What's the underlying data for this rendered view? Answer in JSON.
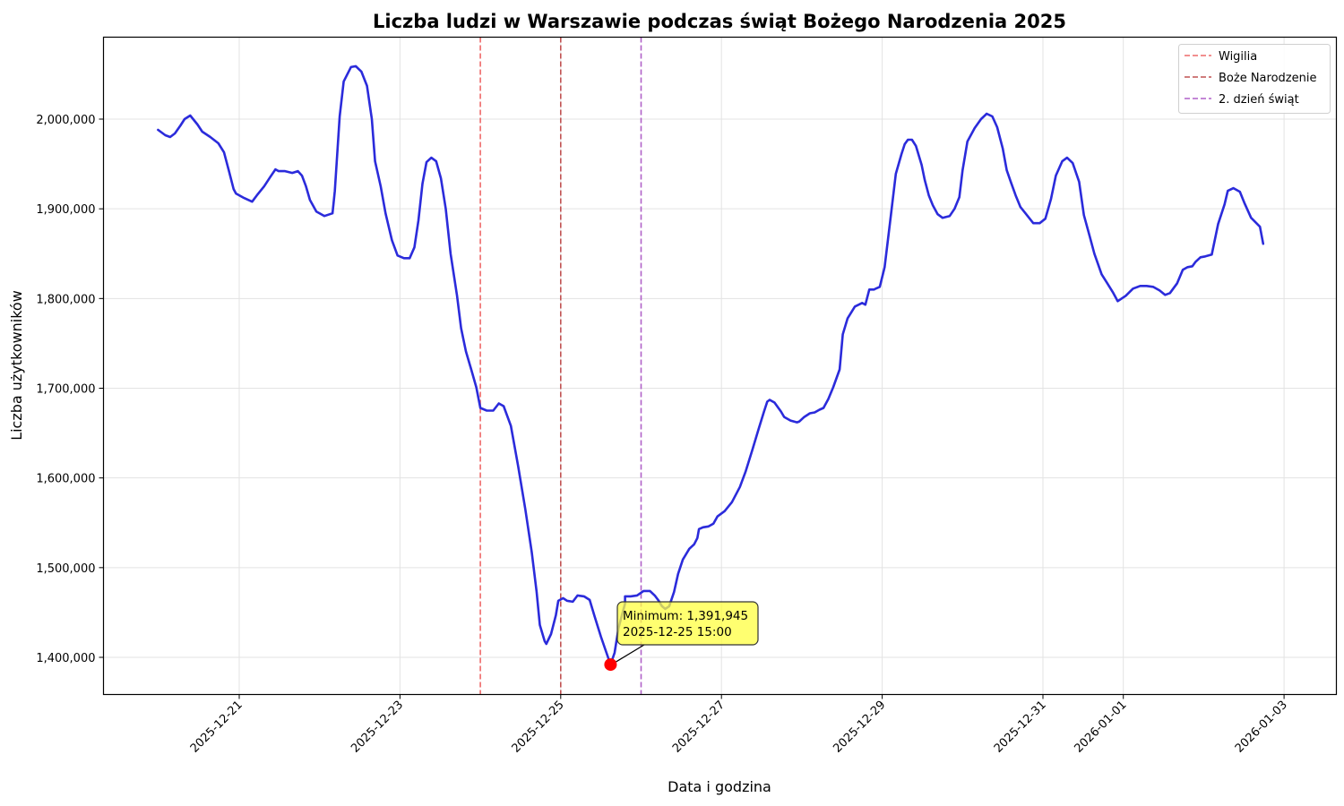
{
  "chart_data": {
    "type": "line",
    "title": "Liczba ludzi w Warszawie podczas świąt Bożego Narodzenia 2025",
    "xlabel": "Data i godzina",
    "ylabel": "Liczba użytkowników",
    "ylim": [
      1357000,
      2091000
    ],
    "xlim_days_from_2025_12_21": [
      -1.7,
      13.6
    ],
    "y_ticks": [
      1400000,
      1500000,
      1600000,
      1700000,
      1800000,
      1900000,
      2000000
    ],
    "y_tick_labels": [
      "1,400,000",
      "1,500,000",
      "1,600,000",
      "1,700,000",
      "1,800,000",
      "1,900,000",
      "2,000,000"
    ],
    "x_ticks": [
      {
        "label": "2025-12-21",
        "day": 0
      },
      {
        "label": "2025-12-23",
        "day": 2
      },
      {
        "label": "2025-12-25",
        "day": 4
      },
      {
        "label": "2025-12-27",
        "day": 6
      },
      {
        "label": "2025-12-29",
        "day": 8
      },
      {
        "label": "2025-12-31",
        "day": 10
      },
      {
        "label": "2026-01-01",
        "day": 11
      },
      {
        "label": "2026-01-03",
        "day": 13
      }
    ],
    "grid": true,
    "legend_position": "upper right",
    "series": [
      {
        "name": "Liczba użytkowników",
        "color": "#2b2bdb",
        "x_day": [
          -1.01,
          -0.92,
          -0.86,
          -0.8,
          -0.73,
          -0.68,
          -0.61,
          -0.52,
          -0.46,
          -0.36,
          -0.26,
          -0.19,
          -0.13,
          -0.07,
          -0.04,
          0.06,
          0.16,
          0.22,
          0.31,
          0.39,
          0.45,
          0.49,
          0.57,
          0.66,
          0.73,
          0.78,
          0.83,
          0.88,
          0.96,
          1.06,
          1.16,
          1.19,
          1.25,
          1.3,
          1.39,
          1.45,
          1.52,
          1.59,
          1.65,
          1.69,
          1.76,
          1.82,
          1.9,
          1.97,
          2.05,
          2.12,
          2.18,
          2.23,
          2.28,
          2.33,
          2.39,
          2.45,
          2.51,
          2.57,
          2.63,
          2.71,
          2.76,
          2.82,
          2.89,
          2.95,
          3.0,
          3.08,
          3.16,
          3.23,
          3.29,
          3.38,
          3.47,
          3.56,
          3.64,
          3.7,
          3.74,
          3.8,
          3.82,
          3.88,
          3.94,
          3.97,
          4.03,
          4.08,
          4.15,
          4.21,
          4.29,
          4.36,
          4.42,
          4.5,
          4.57,
          4.62,
          4.67,
          4.72,
          4.8,
          4.8,
          4.87,
          4.95,
          5.03,
          5.11,
          5.17,
          5.22,
          5.26,
          5.3,
          5.35,
          5.41,
          5.46,
          5.52,
          5.6,
          5.66,
          5.7,
          5.72,
          5.77,
          5.84,
          5.9,
          5.95,
          6.04,
          6.13,
          6.23,
          6.3,
          6.38,
          6.46,
          6.53,
          6.57,
          6.6,
          6.66,
          6.74,
          6.78,
          6.86,
          6.94,
          6.97,
          7.03,
          7.1,
          7.16,
          7.22,
          7.27,
          7.33,
          7.39,
          7.47,
          7.51,
          7.57,
          7.66,
          7.75,
          7.79,
          7.84,
          7.9,
          7.92,
          7.97,
          8.03,
          8.1,
          8.17,
          8.24,
          8.28,
          8.32,
          8.37,
          8.42,
          8.49,
          8.53,
          8.58,
          8.63,
          8.69,
          8.75,
          8.84,
          8.9,
          8.96,
          9.0,
          9.06,
          9.15,
          9.23,
          9.3,
          9.37,
          9.43,
          9.5,
          9.55,
          9.6,
          9.66,
          9.72,
          9.8,
          9.88,
          9.96,
          10.03,
          10.1,
          10.16,
          10.24,
          10.3,
          10.37,
          10.45,
          10.51,
          10.58,
          10.64,
          10.73,
          10.8,
          10.87,
          10.93,
          11.03,
          11.12,
          11.21,
          11.29,
          11.37,
          11.45,
          11.52,
          11.58,
          11.67,
          11.74,
          11.8,
          11.86,
          11.9,
          11.96,
          12.02,
          12.1,
          12.18,
          12.26,
          12.3,
          12.37,
          12.45,
          12.51,
          12.59,
          12.7,
          12.74
        ],
        "values": [
          1988000,
          1982000,
          1980000,
          1984000,
          1993000,
          2000000,
          2004000,
          1994000,
          1986000,
          1980000,
          1973000,
          1963000,
          1943000,
          1922000,
          1917000,
          1912000,
          1908000,
          1915000,
          1925000,
          1936000,
          1944000,
          1942000,
          1942000,
          1940000,
          1942000,
          1937000,
          1925000,
          1910000,
          1897000,
          1892000,
          1895000,
          1920000,
          2003000,
          2042000,
          2058000,
          2059000,
          2053000,
          2037000,
          2000000,
          1953000,
          1925000,
          1895000,
          1865000,
          1848000,
          1845000,
          1845000,
          1857000,
          1887000,
          1928000,
          1952000,
          1957000,
          1953000,
          1934000,
          1900000,
          1850000,
          1803000,
          1767000,
          1741000,
          1720000,
          1701000,
          1678000,
          1675000,
          1675000,
          1683000,
          1680000,
          1658000,
          1613000,
          1565000,
          1517000,
          1473000,
          1436000,
          1418000,
          1415000,
          1426000,
          1447000,
          1463000,
          1466000,
          1463000,
          1462000,
          1469000,
          1468000,
          1464000,
          1446000,
          1423000,
          1405000,
          1391945,
          1405000,
          1433000,
          1460000,
          1468000,
          1468000,
          1469000,
          1474000,
          1474000,
          1469000,
          1463000,
          1457000,
          1454000,
          1457000,
          1473000,
          1493000,
          1509000,
          1521000,
          1526000,
          1533000,
          1543000,
          1545000,
          1546000,
          1549000,
          1557000,
          1563000,
          1573000,
          1590000,
          1607000,
          1630000,
          1654000,
          1674000,
          1685000,
          1687000,
          1684000,
          1674000,
          1668000,
          1664000,
          1662000,
          1663000,
          1668000,
          1672000,
          1673000,
          1676000,
          1678000,
          1688000,
          1701000,
          1721000,
          1760000,
          1778000,
          1791000,
          1795000,
          1793000,
          1810000,
          1810000,
          1811000,
          1813000,
          1835000,
          1887000,
          1939000,
          1961000,
          1972000,
          1977000,
          1977000,
          1970000,
          1949000,
          1932000,
          1915000,
          1904000,
          1894000,
          1890000,
          1892000,
          1900000,
          1913000,
          1943000,
          1975000,
          1990000,
          2000000,
          2006000,
          2003000,
          1991000,
          1967000,
          1943000,
          1930000,
          1915000,
          1902000,
          1893000,
          1884000,
          1884000,
          1889000,
          1911000,
          1937000,
          1953000,
          1957000,
          1951000,
          1930000,
          1893000,
          1870000,
          1850000,
          1827000,
          1817000,
          1807000,
          1797000,
          1803000,
          1811000,
          1814000,
          1814000,
          1813000,
          1809000,
          1804000,
          1806000,
          1817000,
          1832000,
          1835000,
          1836000,
          1841000,
          1846000,
          1847000,
          1849000,
          1883000,
          1905000,
          1920000,
          1923000,
          1919000,
          1906000,
          1890000,
          1880000,
          1861000,
          1855000
        ]
      }
    ],
    "vertical_lines": [
      {
        "label": "Wigilia",
        "day": 3.0,
        "color": "#ee6a6a",
        "style": "dashed"
      },
      {
        "label": "Boże Narodzenie",
        "day": 4.0,
        "color": "#c05252",
        "style": "dashed"
      },
      {
        "label": "2. dzień świąt",
        "day": 5.0,
        "color": "#b061c8",
        "style": "dashed"
      }
    ],
    "annotations": [
      {
        "type": "minimum",
        "text_line1": "Minimum: 1,391,945",
        "text_line2": "2025-12-25 15:00",
        "value": 1391945,
        "datetime": "2025-12-25 15:00",
        "marker_color": "#ff0000",
        "box_color": "#ffff40"
      }
    ],
    "legend": [
      {
        "label": "Wigilia",
        "color": "#ee6a6a"
      },
      {
        "label": "Boże Narodzenie",
        "color": "#c05252"
      },
      {
        "label": "2. dzień świąt",
        "color": "#b061c8"
      }
    ]
  }
}
